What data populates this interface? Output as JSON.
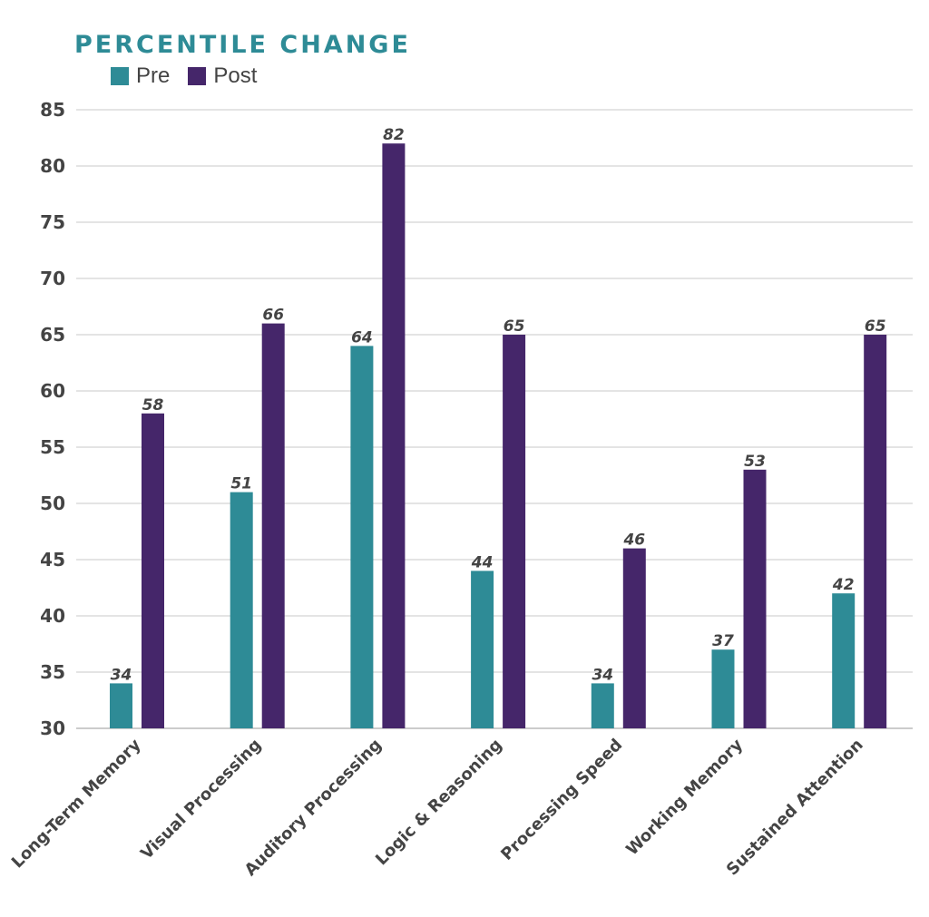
{
  "chart_data": {
    "type": "bar",
    "title": "PERCENTILE CHANGE",
    "categories": [
      "Long-Term Memory",
      "Visual Processing",
      "Auditory Processing",
      "Logic & Reasoning",
      "Processing Speed",
      "Working Memory",
      "Sustained Attention"
    ],
    "series": [
      {
        "name": "Pre",
        "values": [
          34,
          51,
          64,
          44,
          34,
          37,
          42
        ],
        "color": "#2e8b96"
      },
      {
        "name": "Post",
        "values": [
          58,
          66,
          82,
          65,
          46,
          53,
          65
        ],
        "color": "#45266a"
      }
    ],
    "ylim": [
      30,
      85
    ],
    "yticks": [
      30,
      35,
      40,
      45,
      50,
      55,
      60,
      65,
      70,
      75,
      80,
      85
    ],
    "grid": true,
    "legend_position": "top-left",
    "data_labels": true
  }
}
